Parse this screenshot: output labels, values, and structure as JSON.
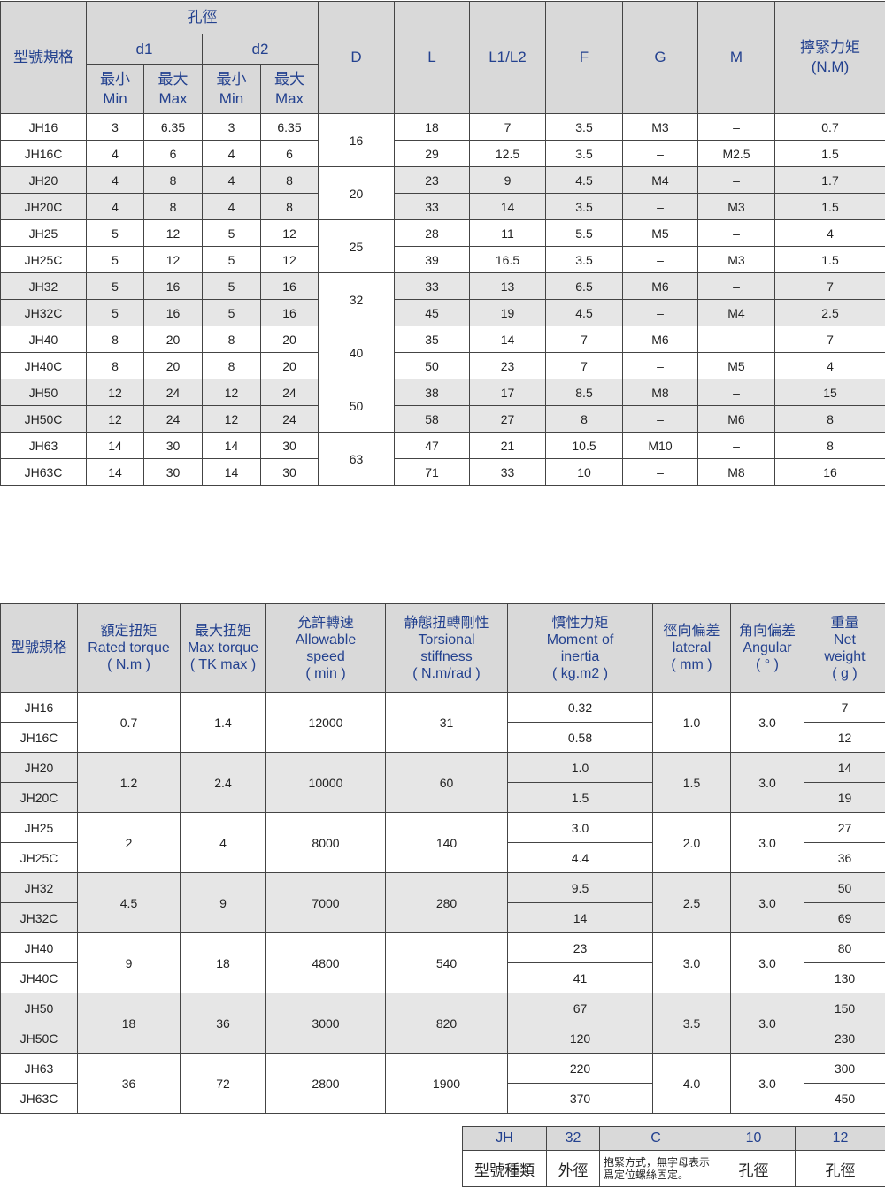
{
  "colors": {
    "header_bg": "#d9d9d9",
    "header_text": "#23418f",
    "shaded_row": "#e6e6e6"
  },
  "dimensions_table": {
    "header": {
      "model": "型號規格",
      "bore": "孔徑",
      "d1": "d1",
      "d2": "d2",
      "min": "最小",
      "min_en": "Min",
      "max": "最大",
      "max_en": "Max",
      "D": "D",
      "L": "L",
      "L1L2": "L1/L2",
      "F": "F",
      "G": "G",
      "M": "M",
      "torque": "擰緊力矩",
      "torque_unit": "(N.M)"
    },
    "rows": [
      [
        "JH16",
        "3",
        "6.35",
        "3",
        "6.35",
        "16",
        "18",
        "7",
        "3.5",
        "M3",
        "–",
        "0.7"
      ],
      [
        "JH16C",
        "4",
        "6",
        "4",
        "6",
        "",
        "29",
        "12.5",
        "3.5",
        "–",
        "M2.5",
        "1.5"
      ],
      [
        "JH20",
        "4",
        "8",
        "4",
        "8",
        "20",
        "23",
        "9",
        "4.5",
        "M4",
        "–",
        "1.7"
      ],
      [
        "JH20C",
        "4",
        "8",
        "4",
        "8",
        "",
        "33",
        "14",
        "3.5",
        "–",
        "M3",
        "1.5"
      ],
      [
        "JH25",
        "5",
        "12",
        "5",
        "12",
        "25",
        "28",
        "11",
        "5.5",
        "M5",
        "–",
        "4"
      ],
      [
        "JH25C",
        "5",
        "12",
        "5",
        "12",
        "",
        "39",
        "16.5",
        "3.5",
        "–",
        "M3",
        "1.5"
      ],
      [
        "JH32",
        "5",
        "16",
        "5",
        "16",
        "32",
        "33",
        "13",
        "6.5",
        "M6",
        "–",
        "7"
      ],
      [
        "JH32C",
        "5",
        "16",
        "5",
        "16",
        "",
        "45",
        "19",
        "4.5",
        "–",
        "M4",
        "2.5"
      ],
      [
        "JH40",
        "8",
        "20",
        "8",
        "20",
        "40",
        "35",
        "14",
        "7",
        "M6",
        "–",
        "7"
      ],
      [
        "JH40C",
        "8",
        "20",
        "8",
        "20",
        "",
        "50",
        "23",
        "7",
        "–",
        "M5",
        "4"
      ],
      [
        "JH50",
        "12",
        "24",
        "12",
        "24",
        "50",
        "38",
        "17",
        "8.5",
        "M8",
        "–",
        "15"
      ],
      [
        "JH50C",
        "12",
        "24",
        "12",
        "24",
        "",
        "58",
        "27",
        "8",
        "–",
        "M6",
        "8"
      ],
      [
        "JH63",
        "14",
        "30",
        "14",
        "30",
        "63",
        "47",
        "21",
        "10.5",
        "M10",
        "–",
        "8"
      ],
      [
        "JH63C",
        "14",
        "30",
        "14",
        "30",
        "",
        "71",
        "33",
        "10",
        "–",
        "M8",
        "16"
      ]
    ]
  },
  "performance_table": {
    "headers": [
      [
        "型號規格"
      ],
      [
        "額定扭矩",
        "Rated torque",
        "( N.m )"
      ],
      [
        "最大扭矩",
        "Max torque",
        "( TK max )"
      ],
      [
        "允許轉速",
        "Allowable",
        "speed",
        "( min )"
      ],
      [
        "静態扭轉剛性",
        "Torsional",
        "stiffness",
        "( N.m/rad )"
      ],
      [
        "慣性力矩",
        "Moment of",
        "inertia",
        "( kg.m2 )"
      ],
      [
        "徑向偏差",
        "lateral",
        "( mm )"
      ],
      [
        "角向偏差",
        "Angular",
        "( ° )"
      ],
      [
        "重量",
        "Net",
        "weight",
        "( g )"
      ]
    ],
    "groups": [
      {
        "models": [
          "JH16",
          "JH16C"
        ],
        "rated": "0.7",
        "max": "1.4",
        "speed": "12000",
        "stiffness": "31",
        "inertia": [
          "0.32",
          "0.58"
        ],
        "lateral": "1.0",
        "angular": "3.0",
        "weight": [
          "7",
          "12"
        ]
      },
      {
        "models": [
          "JH20",
          "JH20C"
        ],
        "rated": "1.2",
        "max": "2.4",
        "speed": "10000",
        "stiffness": "60",
        "inertia": [
          "1.0",
          "1.5"
        ],
        "lateral": "1.5",
        "angular": "3.0",
        "weight": [
          "14",
          "19"
        ]
      },
      {
        "models": [
          "JH25",
          "JH25C"
        ],
        "rated": "2",
        "max": "4",
        "speed": "8000",
        "stiffness": "140",
        "inertia": [
          "3.0",
          "4.4"
        ],
        "lateral": "2.0",
        "angular": "3.0",
        "weight": [
          "27",
          "36"
        ]
      },
      {
        "models": [
          "JH32",
          "JH32C"
        ],
        "rated": "4.5",
        "max": "9",
        "speed": "7000",
        "stiffness": "280",
        "inertia": [
          "9.5",
          "14"
        ],
        "lateral": "2.5",
        "angular": "3.0",
        "weight": [
          "50",
          "69"
        ]
      },
      {
        "models": [
          "JH40",
          "JH40C"
        ],
        "rated": "9",
        "max": "18",
        "speed": "4800",
        "stiffness": "540",
        "inertia": [
          "23",
          "41"
        ],
        "lateral": "3.0",
        "angular": "3.0",
        "weight": [
          "80",
          "130"
        ]
      },
      {
        "models": [
          "JH50",
          "JH50C"
        ],
        "rated": "18",
        "max": "36",
        "speed": "3000",
        "stiffness": "820",
        "inertia": [
          "67",
          "120"
        ],
        "lateral": "3.5",
        "angular": "3.0",
        "weight": [
          "150",
          "230"
        ]
      },
      {
        "models": [
          "JH63",
          "JH63C"
        ],
        "rated": "36",
        "max": "72",
        "speed": "2800",
        "stiffness": "1900",
        "inertia": [
          "220",
          "370"
        ],
        "lateral": "4.0",
        "angular": "3.0",
        "weight": [
          "300",
          "450"
        ]
      }
    ]
  },
  "code_legend": {
    "codes": [
      "JH",
      "32",
      "C",
      "10",
      "12"
    ],
    "meanings": [
      "型號種類",
      "外徑",
      "抱緊方式，無字母表示爲定位螺絲固定。",
      "孔徑",
      "孔徑"
    ]
  }
}
